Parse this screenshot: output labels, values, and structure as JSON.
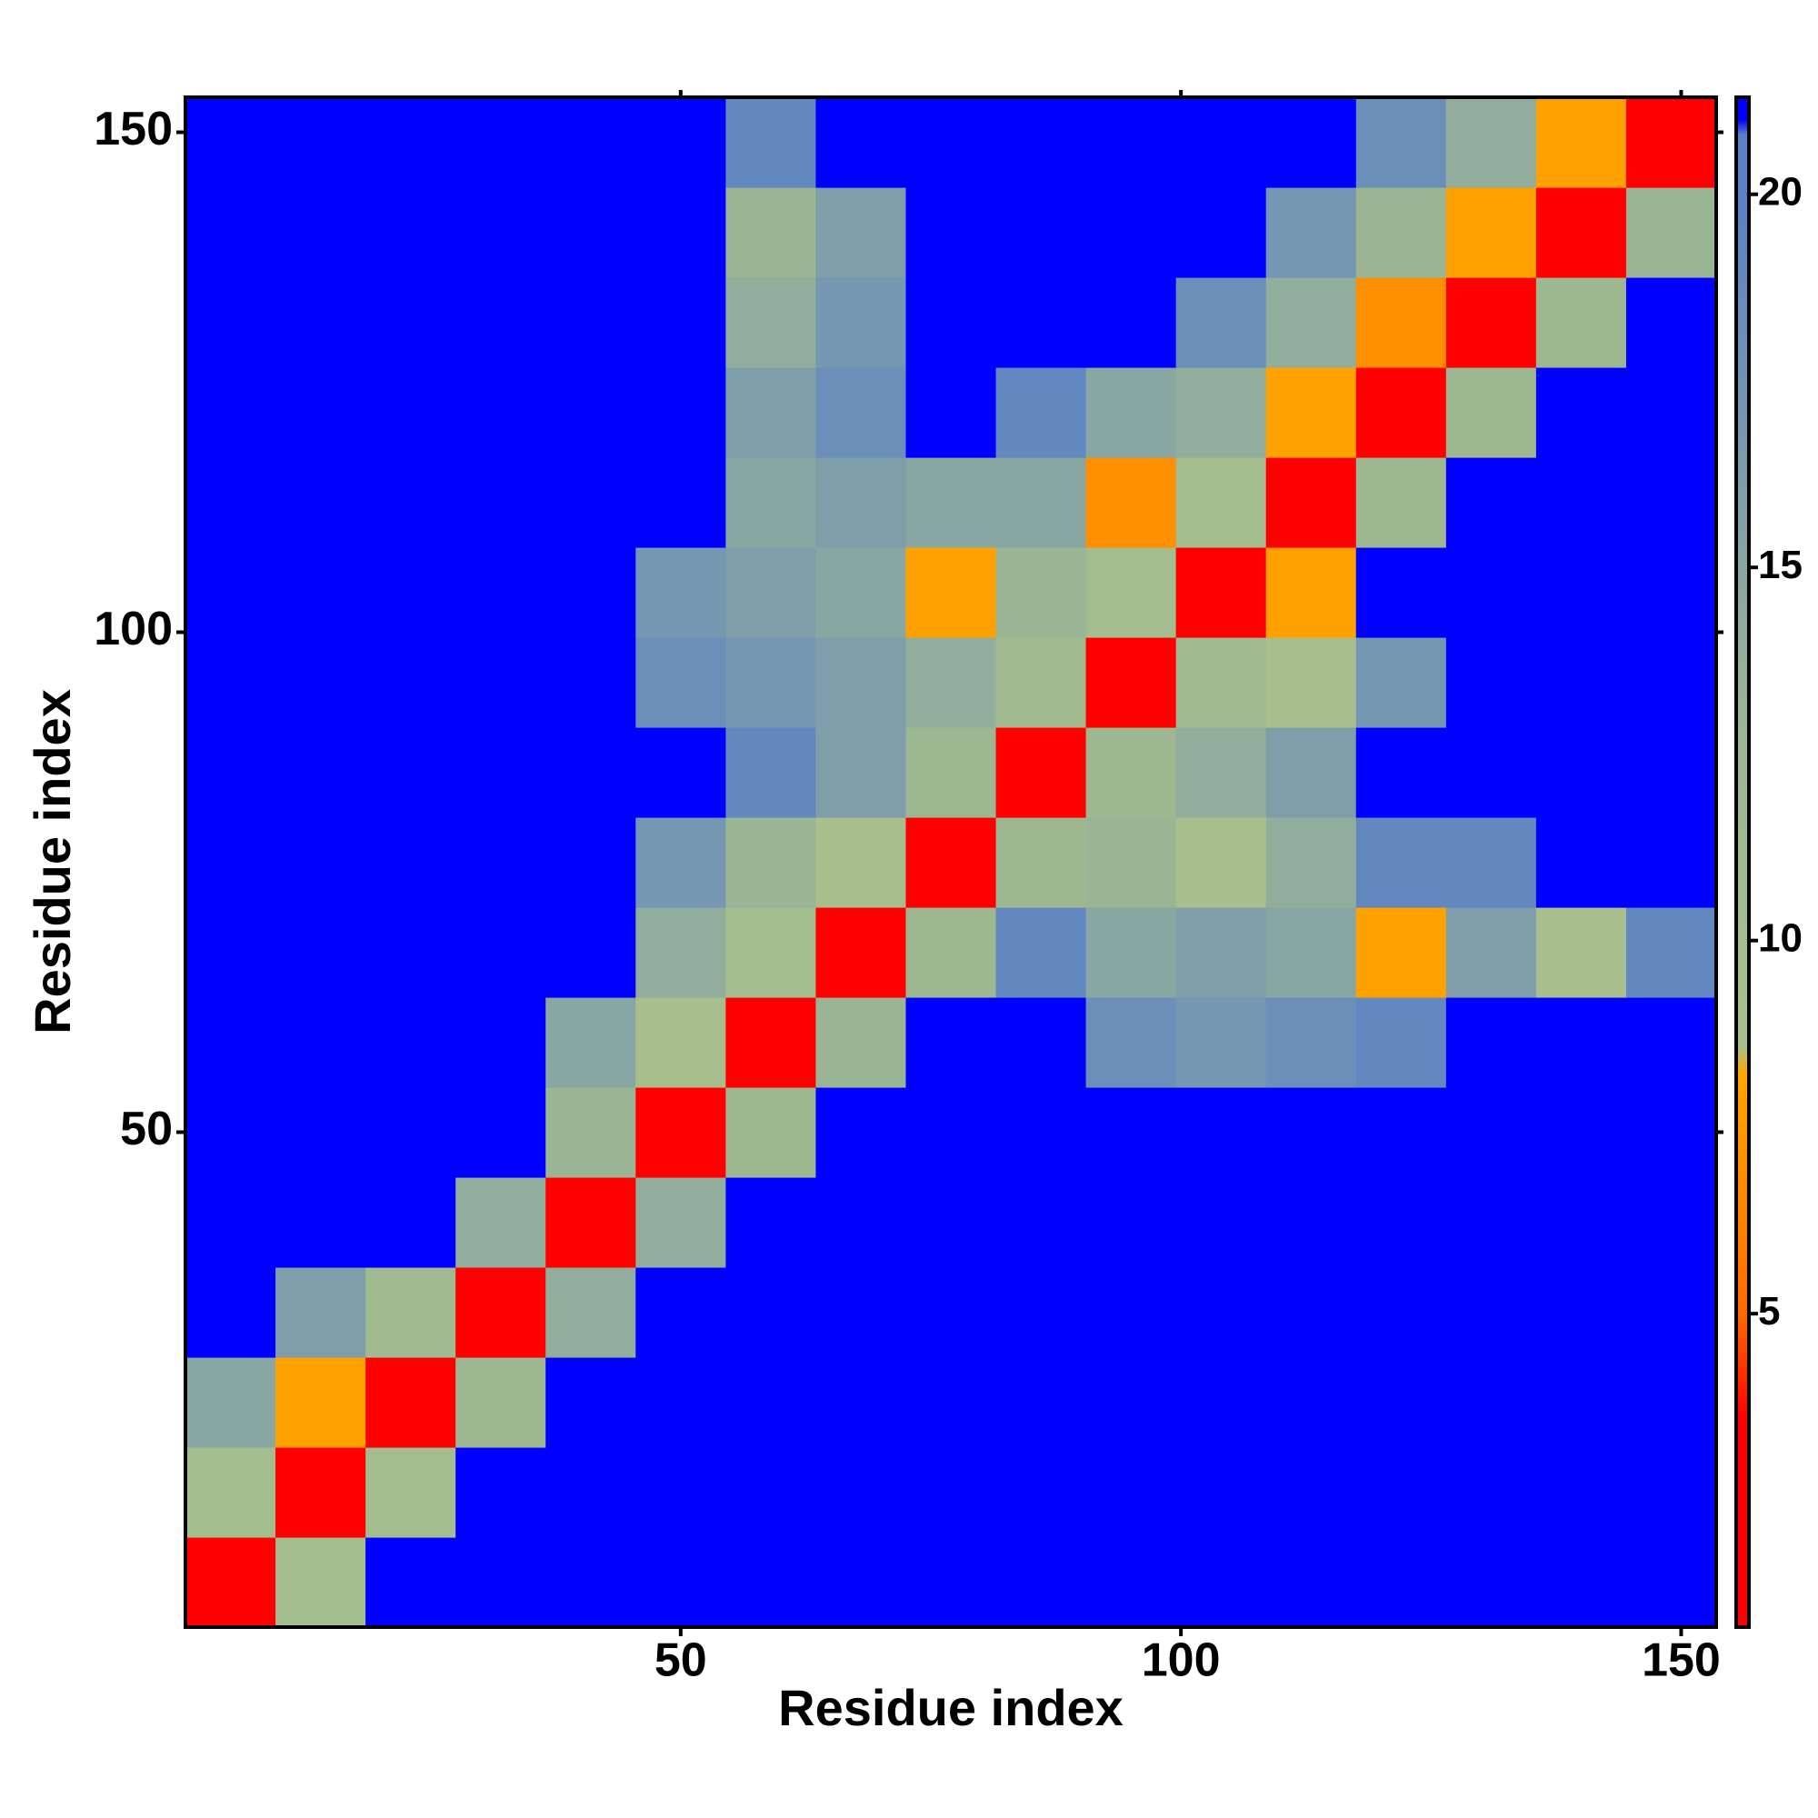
{
  "chart_data": {
    "type": "heatmap",
    "xlabel": "Residue index",
    "ylabel": "Residue index",
    "xbins": [
      0.5,
      9.5,
      18.5,
      27.5,
      36.5,
      45.5,
      54.5,
      63.5,
      72.5,
      81.5,
      90.5,
      99.5,
      108.5,
      117.5,
      126.5,
      135.5,
      144.5,
      153.5
    ],
    "ybins": [
      0.5,
      9.5,
      18.5,
      27.5,
      36.5,
      45.5,
      54.5,
      63.5,
      72.5,
      81.5,
      90.5,
      99.5,
      108.5,
      117.5,
      126.5,
      135.5,
      144.5,
      153.5
    ],
    "z": [
      [
        3,
        10,
        21,
        21,
        21,
        21,
        21,
        21,
        21,
        21,
        21,
        21,
        21,
        21,
        21,
        21,
        21
      ],
      [
        10,
        3,
        10,
        21,
        21,
        21,
        21,
        21,
        21,
        21,
        21,
        21,
        21,
        21,
        21,
        21,
        21
      ],
      [
        15,
        8,
        3,
        12,
        21,
        21,
        21,
        21,
        21,
        21,
        21,
        21,
        21,
        21,
        21,
        21,
        21
      ],
      [
        21,
        16,
        11,
        3,
        14,
        21,
        21,
        21,
        21,
        21,
        21,
        21,
        21,
        21,
        21,
        21,
        21
      ],
      [
        21,
        21,
        21,
        14,
        3,
        14,
        21,
        21,
        21,
        21,
        21,
        21,
        21,
        21,
        21,
        21,
        21
      ],
      [
        21,
        21,
        21,
        21,
        13,
        3,
        12,
        21,
        21,
        21,
        21,
        21,
        21,
        21,
        21,
        21,
        21
      ],
      [
        21,
        21,
        21,
        21,
        15,
        9,
        3,
        13,
        21,
        21,
        18,
        17,
        18,
        19,
        21,
        21,
        21
      ],
      [
        21,
        21,
        21,
        21,
        21,
        14,
        10,
        3,
        12,
        19,
        15,
        16,
        15,
        8,
        16,
        9,
        19
      ],
      [
        21,
        21,
        21,
        21,
        21,
        17,
        13,
        9,
        3,
        12,
        13,
        9,
        14,
        19,
        19,
        21,
        21
      ],
      [
        21,
        21,
        21,
        21,
        21,
        21,
        19,
        16,
        12,
        3,
        12,
        14,
        16,
        21,
        21,
        21,
        21
      ],
      [
        21,
        21,
        21,
        21,
        21,
        18,
        17,
        16,
        14,
        11,
        3,
        11,
        9,
        17,
        21,
        21,
        21
      ],
      [
        21,
        21,
        21,
        21,
        21,
        17,
        16,
        15,
        8,
        13,
        10,
        3,
        8,
        21,
        21,
        21,
        21
      ],
      [
        21,
        21,
        21,
        21,
        21,
        21,
        15,
        16,
        15,
        15,
        7,
        10,
        3,
        12,
        21,
        21,
        21
      ],
      [
        21,
        21,
        21,
        21,
        21,
        21,
        16,
        18,
        21,
        19,
        15,
        14,
        8,
        3,
        12,
        21,
        21
      ],
      [
        21,
        21,
        21,
        21,
        21,
        21,
        14,
        17,
        21,
        21,
        21,
        18,
        14,
        7,
        3,
        12,
        21
      ],
      [
        21,
        21,
        21,
        21,
        21,
        21,
        13,
        16,
        21,
        21,
        21,
        21,
        17,
        13,
        8,
        3,
        13
      ],
      [
        21,
        21,
        21,
        21,
        21,
        21,
        19,
        21,
        21,
        21,
        21,
        21,
        21,
        18,
        14,
        8,
        3
      ]
    ],
    "xlim": [
      0.5,
      153.5
    ],
    "ylim": [
      0.5,
      153.5
    ],
    "xticks": [
      50,
      100,
      150
    ],
    "yticks": [
      50,
      100,
      150
    ],
    "clim": [
      0.8,
      21.3
    ],
    "cticks": [
      5,
      10,
      15,
      20
    ],
    "colorscale": [
      [
        0.8,
        "#ff0000"
      ],
      [
        3.6,
        "#ff0000"
      ],
      [
        5,
        "#ff6a00"
      ],
      [
        8.2,
        "#ffa500"
      ],
      [
        8.6,
        "#a9c08c"
      ],
      [
        13,
        "#9ab593"
      ],
      [
        20,
        "#5a80c8"
      ],
      [
        20.8,
        "#5a7fc8"
      ],
      [
        21,
        "#0000ff"
      ],
      [
        21.3,
        "#0000ff"
      ]
    ]
  }
}
